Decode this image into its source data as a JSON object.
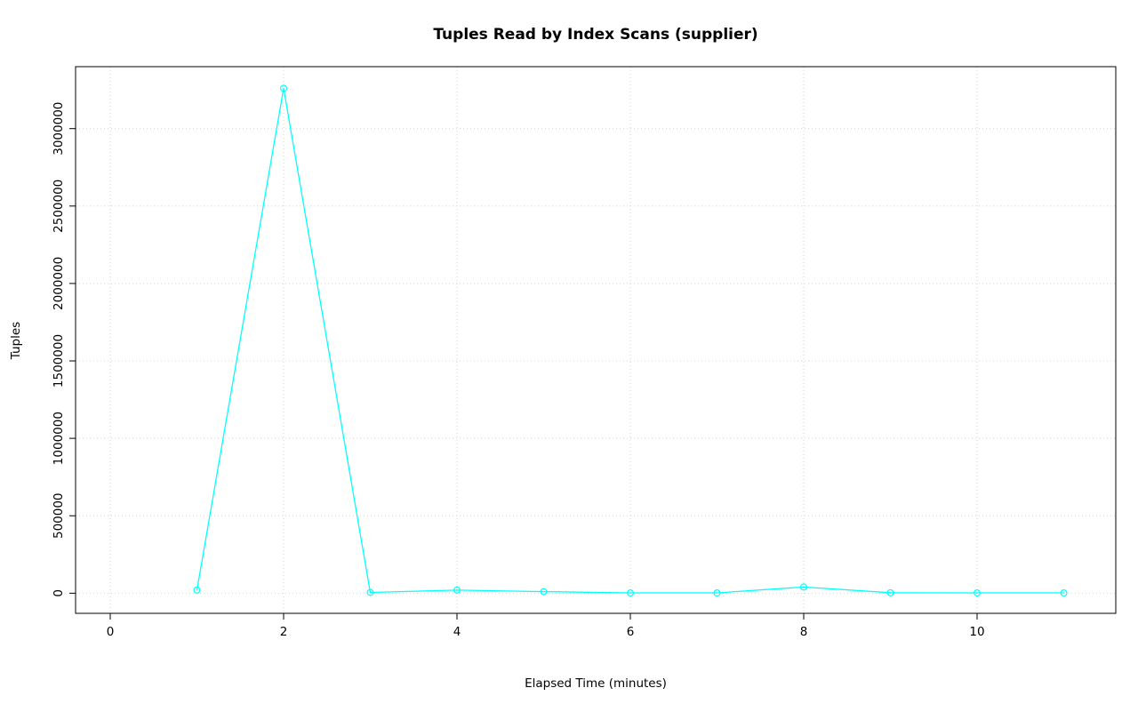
{
  "chart_data": {
    "type": "line",
    "title": "Tuples Read by Index Scans (supplier)",
    "xlabel": "Elapsed Time (minutes)",
    "ylabel": "Tuples",
    "x": [
      1,
      2,
      3,
      4,
      5,
      6,
      7,
      8,
      9,
      10,
      11
    ],
    "values": [
      20000,
      3260000,
      5000,
      20000,
      10000,
      2000,
      2000,
      40000,
      3000,
      2000,
      2000
    ],
    "x_ticks": [
      0,
      2,
      4,
      6,
      8,
      10
    ],
    "y_ticks": [
      0,
      500000,
      1000000,
      1500000,
      2000000,
      2500000,
      3000000
    ],
    "xlim": [
      -0.4,
      11.6
    ],
    "ylim": [
      -130000,
      3400000
    ],
    "grid": true,
    "grid_style": "dotted",
    "legend": "none",
    "marker": "open-circle",
    "line_color": "#00ffff",
    "grid_color": "#d3d3d3",
    "axis_color": "#000000",
    "background_color": "#ffffff"
  }
}
